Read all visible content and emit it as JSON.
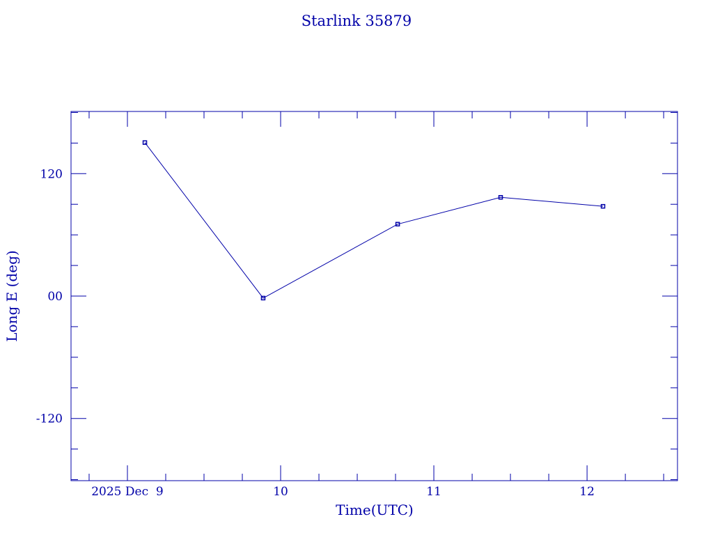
{
  "chart_data": {
    "type": "line",
    "title": "Starlink 35879",
    "xlabel": "Time(UTC)",
    "ylabel": "Long E (deg)",
    "color": "#0000a8",
    "markers": "square",
    "grid": false,
    "x_axis": {
      "type": "date",
      "range": [
        "2025-12-08T15:10",
        "2025-12-12T14:10"
      ],
      "major_ticks": [
        "2025-12-09",
        "2025-12-10",
        "2025-12-11",
        "2025-12-12"
      ],
      "tick_labels": [
        "2025 Dec  9",
        "10",
        "11",
        "12"
      ],
      "minor_tick_hours": 6
    },
    "y_axis": {
      "range": [
        -181,
        181
      ],
      "major_ticks": [
        -120,
        0,
        120
      ],
      "tick_labels": [
        "-120",
        "00",
        "120"
      ],
      "minor_tick_step": 30
    },
    "series": [
      {
        "x": [
          "2025-12-09T02:44",
          "2025-12-09T21:16",
          "2025-12-10T18:20",
          "2025-12-11T10:28",
          "2025-12-12T02:30"
        ],
        "y": [
          150.5,
          -2.0,
          70.5,
          96.8,
          88.0
        ]
      }
    ]
  }
}
